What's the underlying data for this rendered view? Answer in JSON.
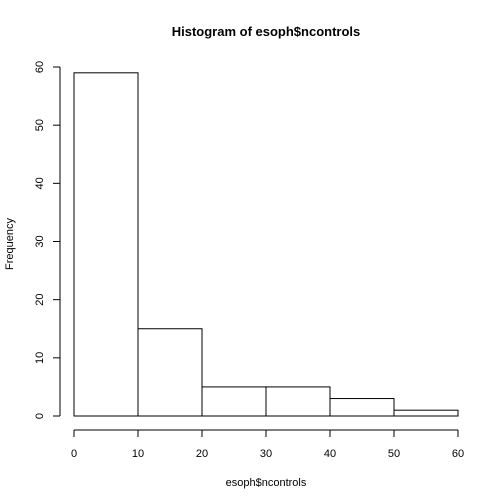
{
  "chart_data": {
    "type": "bar",
    "title": "Histogram of esoph$ncontrols",
    "xlabel": "esoph$ncontrols",
    "ylabel": "Frequency",
    "bins": [
      {
        "start": 0,
        "end": 10,
        "value": 59
      },
      {
        "start": 10,
        "end": 20,
        "value": 15
      },
      {
        "start": 20,
        "end": 30,
        "value": 5
      },
      {
        "start": 30,
        "end": 40,
        "value": 5
      },
      {
        "start": 40,
        "end": 50,
        "value": 3
      },
      {
        "start": 50,
        "end": 60,
        "value": 1
      }
    ],
    "xlim": [
      0,
      60
    ],
    "ylim": [
      0,
      60
    ],
    "x_ticks": [
      0,
      10,
      20,
      30,
      40,
      50,
      60
    ],
    "y_ticks": [
      0,
      10,
      20,
      30,
      40,
      50,
      60
    ],
    "grid": false,
    "legend": "none",
    "colors": {
      "bar_fill": "#ffffff",
      "bar_stroke": "#000000"
    }
  }
}
